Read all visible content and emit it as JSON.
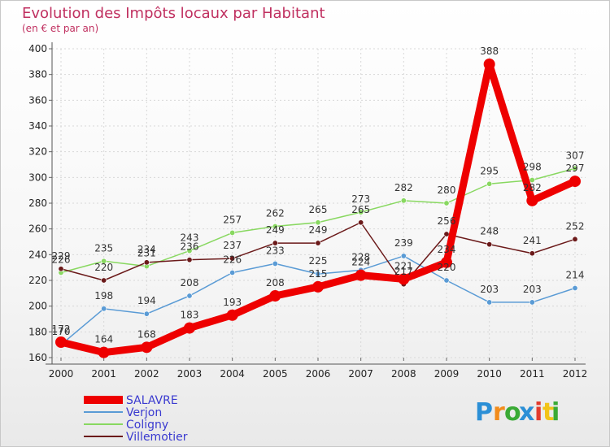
{
  "chart_data": {
    "type": "line",
    "title": "Evolution des Impôts locaux par Habitant",
    "subtitle": "(en € et par an)",
    "xlabel": "",
    "ylabel": "",
    "categories": [
      "2000",
      "2001",
      "2002",
      "2003",
      "2004",
      "2005",
      "2006",
      "2007",
      "2008",
      "2009",
      "2010",
      "2011",
      "2012"
    ],
    "ylim": [
      160,
      400
    ],
    "yticks": [
      160,
      180,
      200,
      220,
      240,
      260,
      280,
      300,
      320,
      340,
      360,
      380,
      400
    ],
    "grid": true,
    "series": [
      {
        "name": "SALAVRE",
        "color": "#ee0000",
        "values": [
          172,
          164,
          168,
          183,
          193,
          208,
          215,
          224,
          221,
          234,
          388,
          282,
          297
        ]
      },
      {
        "name": "Verjon",
        "color": "#5a9bd5",
        "values": [
          170,
          198,
          194,
          208,
          226,
          233,
          225,
          228,
          239,
          220,
          203,
          203,
          214
        ]
      },
      {
        "name": "Coligny",
        "color": "#88d860",
        "values": [
          226,
          235,
          231,
          243,
          257,
          262,
          265,
          273,
          282,
          280,
          295,
          298,
          307
        ]
      },
      {
        "name": "Villemotier",
        "color": "#6b1a1a",
        "values": [
          229,
          220,
          234,
          236,
          237,
          249,
          249,
          265,
          217,
          256,
          248,
          241,
          252
        ]
      }
    ]
  },
  "logo": {
    "letters": [
      "P",
      "r",
      "o",
      "x",
      "i",
      "t",
      "i"
    ],
    "colors": [
      "#2b8fd6",
      "#f28c1c",
      "#3aaa35",
      "#2b8fd6",
      "#e23b2e",
      "#f2c418",
      "#3aaa35"
    ]
  }
}
